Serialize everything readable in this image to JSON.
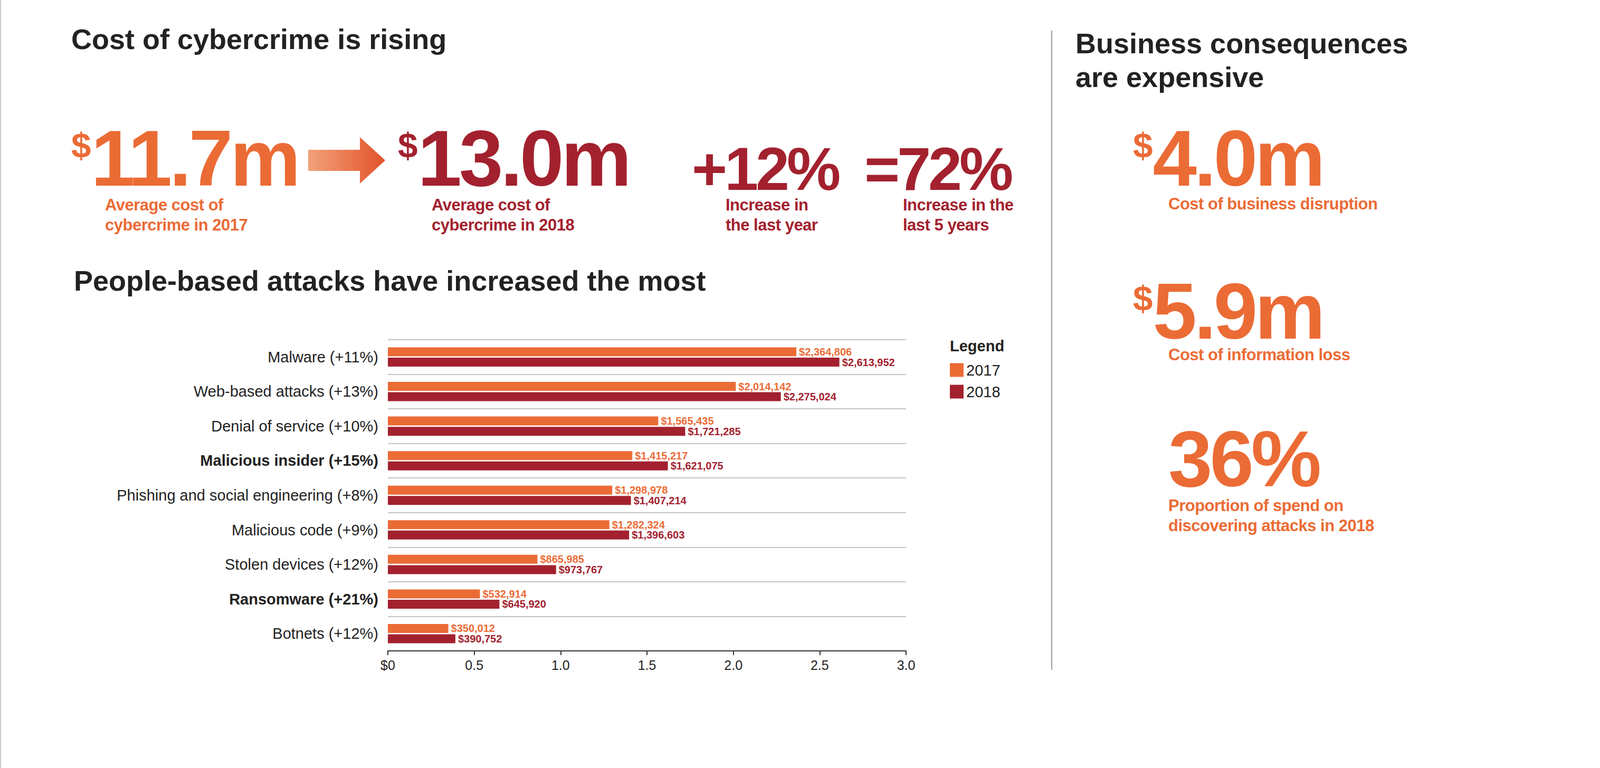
{
  "left_panel": {
    "title": "Cost of cybercrime is rising",
    "stats": [
      {
        "text": "$11.7m",
        "label": "Average cost of\ncybercrime in 2017",
        "color": "#EB6B35"
      },
      {
        "text": "$13.0m",
        "label": "Average cost of\ncybercrime in 2018",
        "color": "#A3212E"
      },
      {
        "text": "+12%",
        "label": "Increase in\nthe last year",
        "color": "#A3212E"
      },
      {
        "text": "=72%",
        "label": "Increase in the\nlast 5 years",
        "color": "#A3212E"
      }
    ]
  },
  "right_panel": {
    "title": "Business consequences\nare expensive",
    "stats": [
      {
        "text": "$4.0m",
        "label": "Cost of business disruption",
        "color": "#EB6B35"
      },
      {
        "text": "$5.9m",
        "label": "Cost of information loss",
        "color": "#EB6B35"
      },
      {
        "text": "36%",
        "label": "Proportion of spend on\ndiscovering attacks in 2018",
        "color": "#EB6B35"
      }
    ]
  },
  "chart_data": {
    "type": "bar",
    "title": "People-based attacks have increased the most",
    "orientation": "horizontal",
    "categories": [
      "Malware (+11%)",
      "Web-based attacks (+13%)",
      "Denial of service (+10%)",
      "Malicious insider (+15%)",
      "Phishing and social engineering (+8%)",
      "Malicious code (+9%)",
      "Stolen devices (+12%)",
      "Ransomware (+21%)",
      "Botnets (+12%)"
    ],
    "series": [
      {
        "name": "2017",
        "color": "#EB6B35",
        "values": [
          2.364806,
          2.014142,
          1.565435,
          1.415217,
          1.298978,
          1.282324,
          0.865985,
          0.532914,
          0.350012
        ],
        "value_labels": [
          "$2,364,806",
          "$2,014,142",
          "$1,565,435",
          "$1,415,217",
          "$1,298,978",
          "$1,282,324",
          "$865,985",
          "$532,914",
          "$350,012"
        ]
      },
      {
        "name": "2018",
        "color": "#A3212E",
        "values": [
          2.613952,
          2.275024,
          1.721285,
          1.621075,
          1.407214,
          1.396603,
          0.973767,
          0.64592,
          0.390752
        ],
        "value_labels": [
          "$2,613,952",
          "$2,275,024",
          "$1,721,285",
          "$1,621,075",
          "$1,407,214",
          "$1,396,603",
          "$973,767",
          "$645,920",
          "$390,752"
        ]
      }
    ],
    "xlim": [
      0,
      3
    ],
    "xticks": [
      {
        "value": 0,
        "label": "$0"
      },
      0.5,
      {
        "value": 1,
        "label": "1.0"
      },
      1.5,
      {
        "value": 2,
        "label": "2.0"
      },
      2.5,
      {
        "value": 3,
        "label": "3.0"
      }
    ],
    "grid": true,
    "legend": "top-right",
    "legend_title": "Legend",
    "data_labels": true
  }
}
